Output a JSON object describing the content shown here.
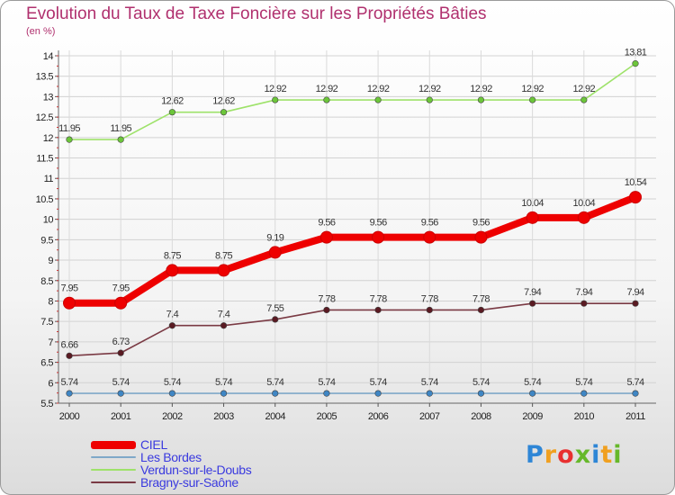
{
  "chart_data": {
    "type": "line",
    "title": "Evolution du Taux de Taxe Foncière sur les Propriétés Bâties",
    "subtitle": "(en %)",
    "x": [
      "2000",
      "2001",
      "2002",
      "2003",
      "2004",
      "2005",
      "2006",
      "2007",
      "2008",
      "2009",
      "2010",
      "2011"
    ],
    "ylim": [
      5.5,
      14
    ],
    "yticks": [
      5.5,
      6,
      6.5,
      7,
      7.5,
      8,
      8.5,
      9,
      9.5,
      10,
      10.5,
      11,
      11.5,
      12,
      12.5,
      13,
      13.5,
      14
    ],
    "ytick_labels": [
      "5.5",
      "6",
      "6.5",
      "7",
      "7.5",
      "8",
      "8.5",
      "9",
      "9.5",
      "10",
      "10.5",
      "11",
      "11.5",
      "12",
      "12.5",
      "13",
      "13.5",
      "14"
    ],
    "series": [
      {
        "name": "CIEL",
        "color": "#ee0000",
        "markerColor": "#ee0000",
        "values": [
          7.95,
          7.95,
          8.75,
          8.75,
          9.19,
          9.56,
          9.56,
          9.56,
          9.56,
          10.04,
          10.04,
          10.54
        ],
        "labels": [
          "7.95",
          "7.95",
          "8.75",
          "8.75",
          "9.19",
          "9.56",
          "9.56",
          "9.56",
          "9.56",
          "10.04",
          "10.04",
          "10.54"
        ]
      },
      {
        "name": "Les Bordes",
        "color": "#7fa8c8",
        "markerColor": "#3f86c4",
        "values": [
          5.74,
          5.74,
          5.74,
          5.74,
          5.74,
          5.74,
          5.74,
          5.74,
          5.74,
          5.74,
          5.74,
          5.74
        ],
        "labels": [
          "5.74",
          "5.74",
          "5.74",
          "5.74",
          "5.74",
          "5.74",
          "5.74",
          "5.74",
          "5.74",
          "5.74",
          "5.74",
          "5.74"
        ]
      },
      {
        "name": "Verdun-sur-le-Doubs",
        "color": "#9ee26a",
        "markerColor": "#6cc63a",
        "values": [
          11.95,
          11.95,
          12.62,
          12.62,
          12.92,
          12.92,
          12.92,
          12.92,
          12.92,
          12.92,
          12.92,
          13.81
        ],
        "labels": [
          "11.95",
          "11.95",
          "12.62",
          "12.62",
          "12.92",
          "12.92",
          "12.92",
          "12.92",
          "12.92",
          "12.92",
          "12.92",
          "13.81"
        ]
      },
      {
        "name": "Bragny-sur-Saône",
        "color": "#7a3a44",
        "markerColor": "#5a1a22",
        "values": [
          6.66,
          6.73,
          7.4,
          7.4,
          7.55,
          7.78,
          7.78,
          7.78,
          7.78,
          7.94,
          7.94,
          7.94
        ],
        "labels": [
          "6.66",
          "6.73",
          "7.4",
          "7.4",
          "7.55",
          "7.78",
          "7.78",
          "7.78",
          "7.78",
          "7.94",
          "7.94",
          "7.94"
        ]
      }
    ]
  },
  "legend": {
    "items": [
      {
        "label": "CIEL",
        "color": "#ee0000",
        "textColor": "#3a3adf"
      },
      {
        "label": "Les Bordes",
        "color": "#7fa8c8",
        "textColor": "#3a3adf"
      },
      {
        "label": "Verdun-sur-le-Doubs",
        "color": "#9ee26a",
        "textColor": "#3a3adf"
      },
      {
        "label": "Bragny-sur-Saône",
        "color": "#7a3a44",
        "textColor": "#3a3adf"
      }
    ]
  },
  "logo": {
    "letters": [
      "P",
      "r",
      "o",
      "x",
      "i",
      "t",
      "i"
    ],
    "colors": [
      "#2e86d6",
      "#f0a020",
      "#e83030",
      "#66b82a",
      "#2e86d6",
      "#f0a020",
      "#66b82a"
    ]
  }
}
